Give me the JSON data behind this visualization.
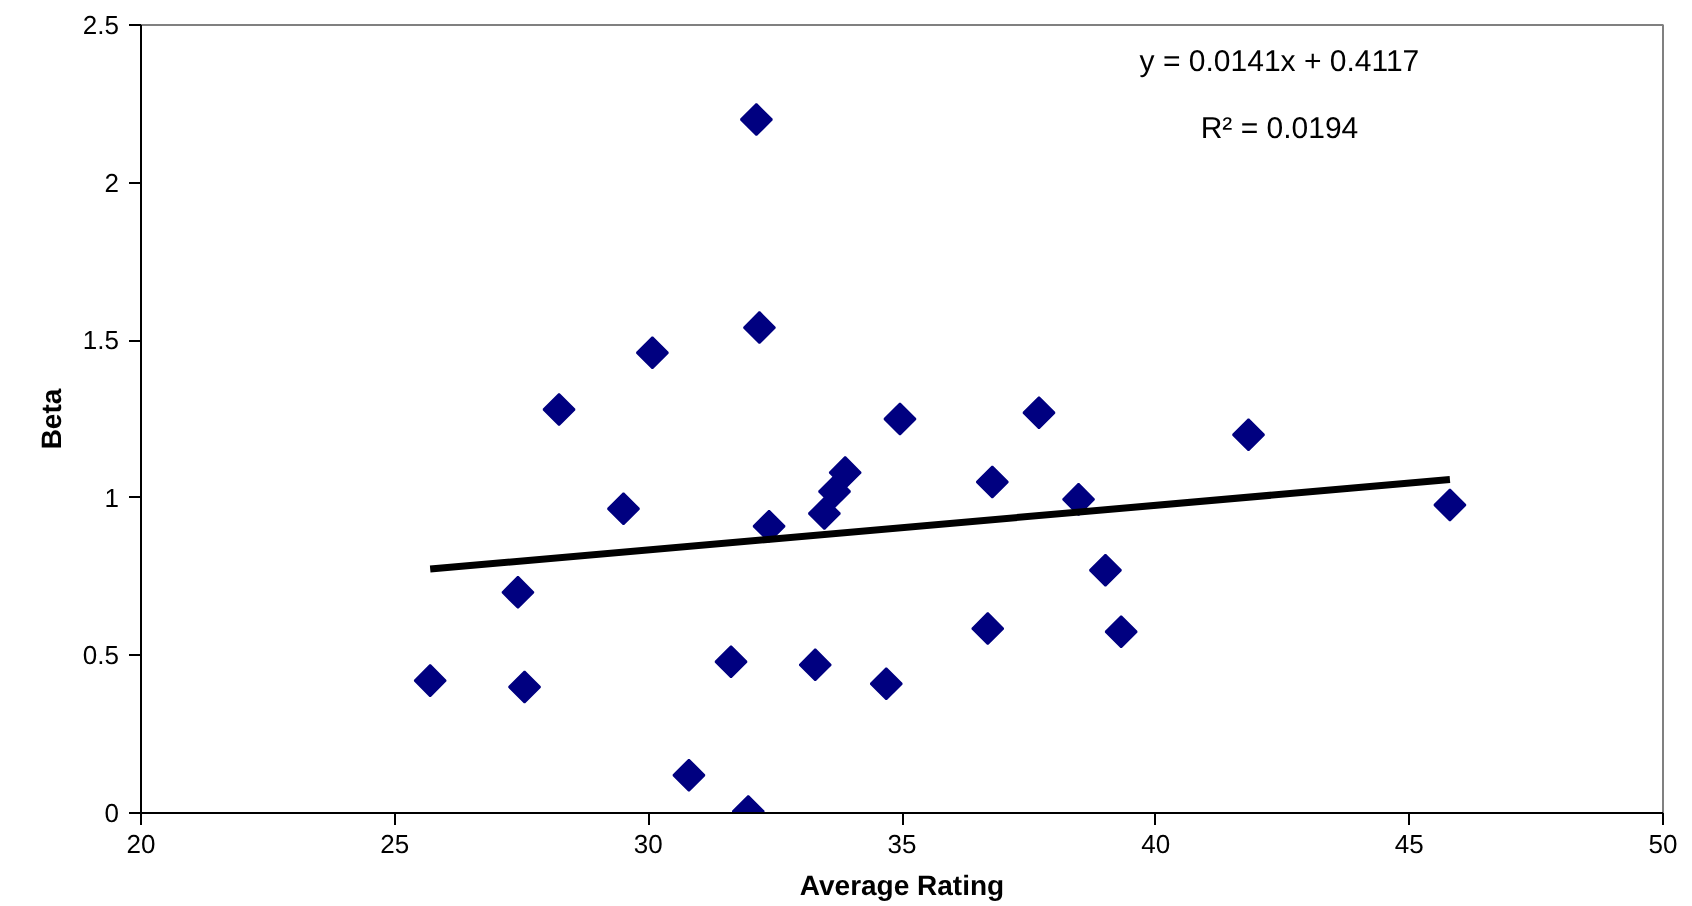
{
  "chart_data": {
    "type": "scatter",
    "xlabel": "Average Rating",
    "ylabel": "Beta",
    "xlim": [
      20,
      50
    ],
    "xticks": [
      20,
      25,
      30,
      35,
      40,
      45,
      50
    ],
    "ylim": [
      0,
      2.5
    ],
    "yticks": [
      0,
      0.5,
      1,
      1.5,
      2,
      2.5
    ],
    "grid": false,
    "series": [
      {
        "marker": "diamond",
        "color": "#000080",
        "x": [
          25.7,
          27.43,
          27.56,
          28.24,
          29.51,
          30.08,
          30.8,
          31.63,
          31.97,
          32.13,
          32.19,
          32.38,
          33.29,
          33.47,
          33.67,
          33.88,
          34.69,
          34.96,
          36.69,
          36.78,
          37.7,
          38.48,
          39.01,
          39.32,
          41.83,
          45.8
        ],
        "values": [
          0.42,
          0.7,
          0.4,
          1.28,
          0.965,
          1.46,
          0.12,
          0.48,
          0.005,
          2.2,
          1.54,
          0.91,
          0.47,
          0.95,
          1.02,
          1.08,
          0.41,
          1.25,
          0.585,
          1.05,
          1.27,
          0.995,
          0.77,
          0.575,
          1.2,
          0.977
        ]
      },
      {
        "type": "line",
        "color": "#000000",
        "x": [
          25.7,
          45.8
        ],
        "values": [
          0.774,
          1.058
        ]
      }
    ],
    "annotations": [
      "y = 0.0141x + 0.4117",
      "R² = 0.0194"
    ]
  }
}
